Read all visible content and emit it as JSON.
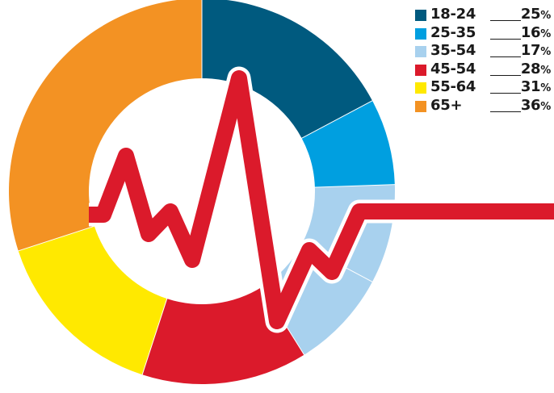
{
  "chart_data": {
    "type": "pie",
    "variant": "donut",
    "title": "",
    "categories": [
      "18-24",
      "25-35",
      "35-54",
      "45-54",
      "55-64",
      "65+"
    ],
    "values": [
      25,
      16,
      17,
      28,
      31,
      36
    ],
    "value_suffix": "%",
    "legend": "top-right",
    "series": [
      {
        "label": "18-24",
        "value": 25,
        "display": "25",
        "color": "#005a7f"
      },
      {
        "label": "25-35",
        "value": 16,
        "display": "16",
        "color": "#009fe0"
      },
      {
        "label": "35-54",
        "value": 17,
        "display": "17",
        "color": "#a8d1ee"
      },
      {
        "label": "45-54",
        "value": 28,
        "display": "28",
        "color": "#db1a2b"
      },
      {
        "label": "55-64",
        "value": 31,
        "display": "31",
        "color": "#ffe900"
      },
      {
        "label": "65+",
        "value": 36,
        "display": "36",
        "color": "#f39223"
      }
    ],
    "decoration": {
      "type": "heartbeat-line",
      "color": "#db1a2b",
      "outline": "#ffffff"
    }
  }
}
